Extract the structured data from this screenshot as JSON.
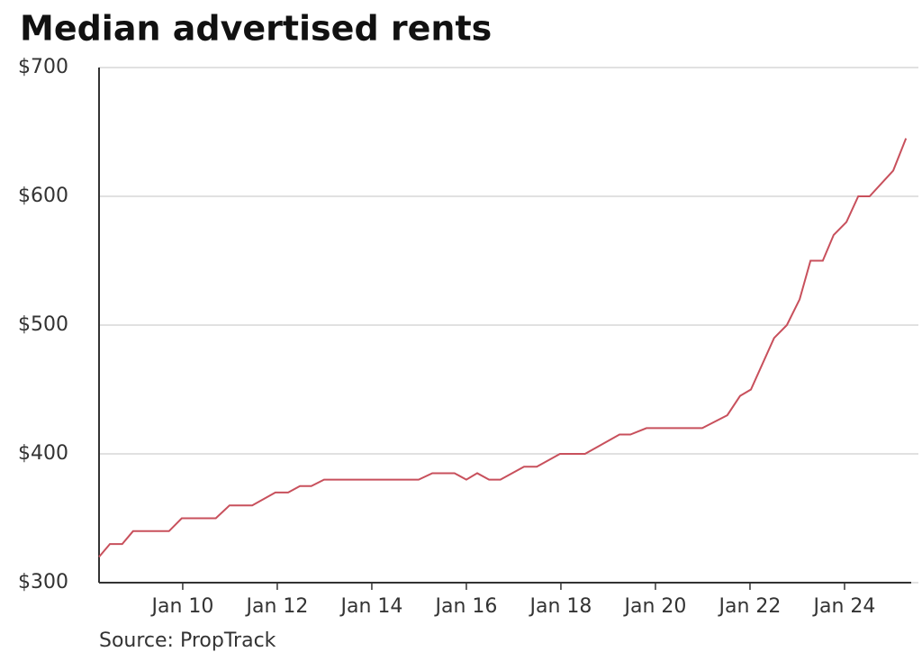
{
  "chart_data": {
    "type": "line",
    "title": "Median advertised rents",
    "source": "Source: PropTrack",
    "x": [
      2008.23,
      2008.46,
      2008.72,
      2008.95,
      2009.71,
      2009.98,
      2010.7,
      2010.99,
      2011.47,
      2011.96,
      2012.23,
      2012.48,
      2012.72,
      2012.99,
      2014.99,
      2015.28,
      2015.75,
      2016.0,
      2016.23,
      2016.48,
      2016.72,
      2017.22,
      2017.49,
      2017.98,
      2018.51,
      2019.24,
      2019.47,
      2019.81,
      2020.99,
      2021.52,
      2021.79,
      2022.02,
      2022.51,
      2022.78,
      2023.05,
      2023.28,
      2023.54,
      2023.77,
      2024.04,
      2024.29,
      2024.53,
      2025.03,
      2025.3
    ],
    "series": [
      {
        "color": "#c8505c",
        "values": [
          320,
          330,
          330,
          340,
          340,
          350,
          350,
          360,
          360,
          370,
          370,
          375,
          375,
          380,
          380,
          385,
          385,
          380,
          385,
          380,
          380,
          390,
          390,
          400,
          400,
          415,
          415,
          420,
          420,
          430,
          445,
          450,
          490,
          500,
          520,
          550,
          550,
          570,
          580,
          600,
          600,
          620,
          645
        ]
      }
    ],
    "xlim": [
      2008.23,
      2025.41
    ],
    "xticks": [
      {
        "value": 2010,
        "label": "Jan 10"
      },
      {
        "value": 2012,
        "label": "Jan 12"
      },
      {
        "value": 2014,
        "label": "Jan 14"
      },
      {
        "value": 2016,
        "label": "Jan 16"
      },
      {
        "value": 2018,
        "label": "Jan 18"
      },
      {
        "value": 2020,
        "label": "Jan 20"
      },
      {
        "value": 2022,
        "label": "Jan 22"
      },
      {
        "value": 2024,
        "label": "Jan 24"
      }
    ],
    "ylim": [
      300,
      700
    ],
    "yticks": [
      {
        "value": 300,
        "label": "$300"
      },
      {
        "value": 400,
        "label": "$400"
      },
      {
        "value": 500,
        "label": "$500"
      },
      {
        "value": 600,
        "label": "$600"
      },
      {
        "value": 700,
        "label": "$700"
      }
    ],
    "grid": true
  }
}
